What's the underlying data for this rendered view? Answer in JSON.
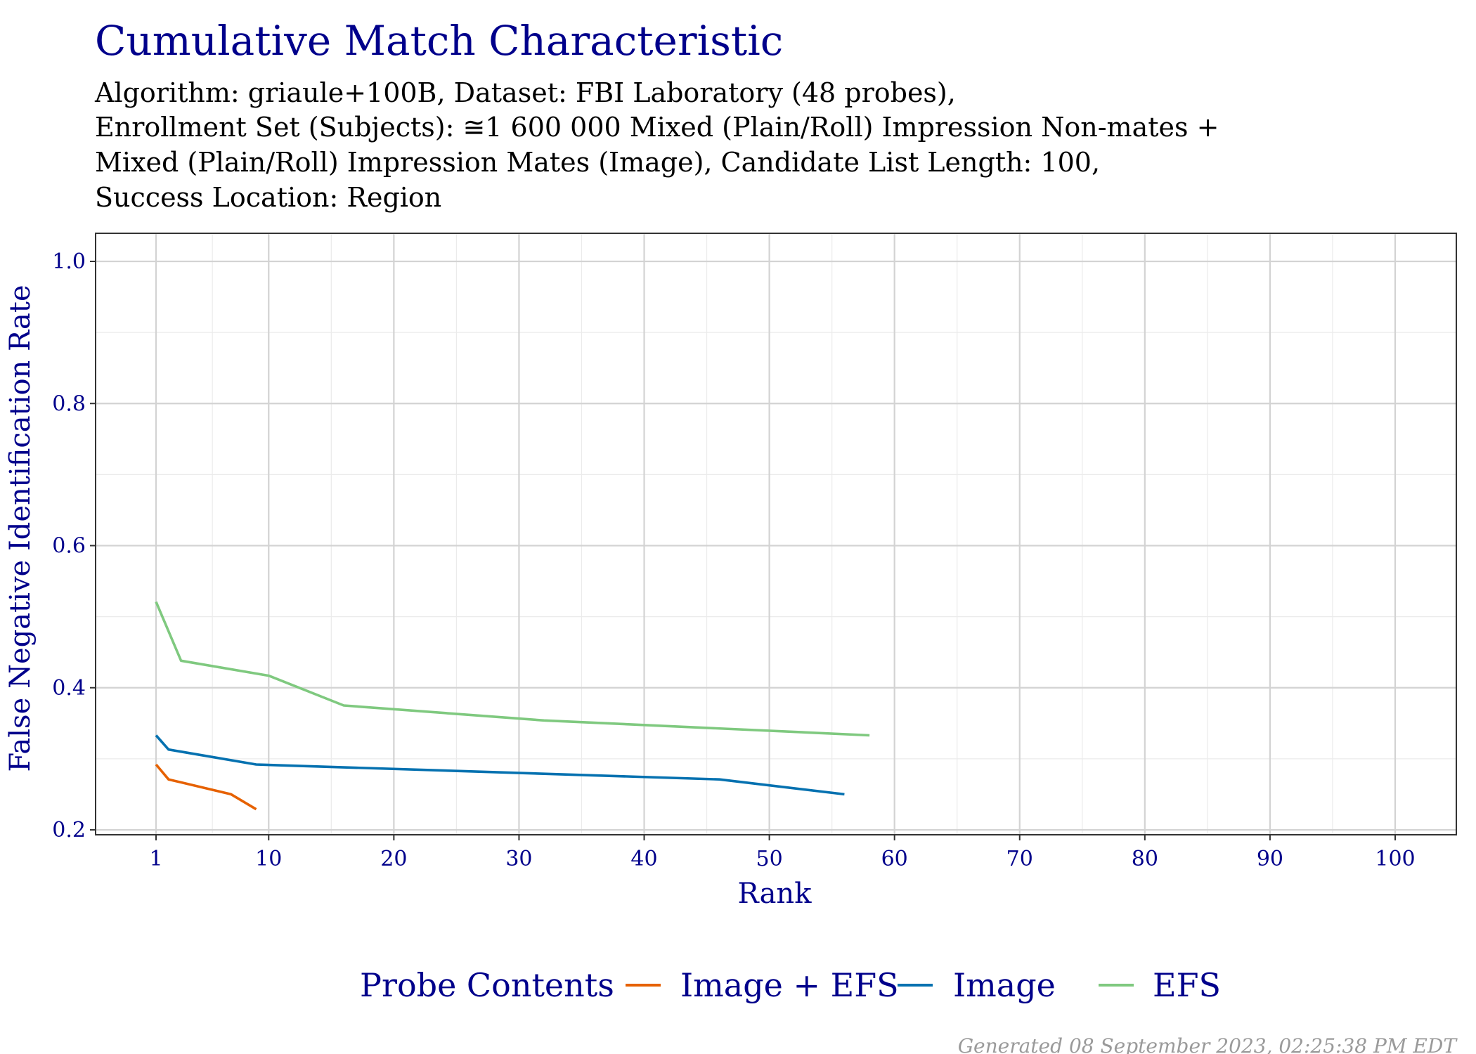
{
  "chart_data": {
    "type": "line",
    "title": "Cumulative Match Characteristic",
    "subtitle_lines": [
      "Algorithm: griaule+100B, Dataset: FBI Laboratory (48 probes),",
      "Enrollment Set (Subjects): ≅1 600 000 Mixed (Plain/Roll) Impression Non-mates +",
      "Mixed (Plain/Roll) Impression Mates (Image), Candidate List Length: 100,",
      "Success Location: Region"
    ],
    "xlabel": "Rank",
    "ylabel": "False Negative Identification Rate",
    "xlim": [
      1,
      100
    ],
    "ylim": [
      0.2,
      1.0
    ],
    "x_ticks": [
      1,
      10,
      20,
      30,
      40,
      50,
      60,
      70,
      80,
      90,
      100
    ],
    "y_ticks": [
      0.2,
      0.4,
      0.6,
      0.8,
      1.0
    ],
    "y_tick_labels": [
      "0.2",
      "0.4",
      "0.6",
      "0.8",
      "1.0"
    ],
    "grid": true,
    "legend_title": "Probe Contents",
    "legend_position": "bottom",
    "series": [
      {
        "name": "Image + EFS",
        "color": "#E66101",
        "points": [
          [
            1,
            0.292
          ],
          [
            2,
            0.271
          ],
          [
            7,
            0.25
          ],
          [
            9,
            0.229
          ]
        ]
      },
      {
        "name": "Image",
        "color": "#0571B0",
        "points": [
          [
            1,
            0.333
          ],
          [
            2,
            0.313
          ],
          [
            9,
            0.292
          ],
          [
            46,
            0.271
          ],
          [
            56,
            0.25
          ]
        ]
      },
      {
        "name": "EFS",
        "color": "#7FC97F",
        "points": [
          [
            1,
            0.521
          ],
          [
            3,
            0.438
          ],
          [
            10,
            0.417
          ],
          [
            16,
            0.375
          ],
          [
            32,
            0.354
          ],
          [
            58,
            0.333
          ]
        ]
      }
    ]
  },
  "footer": "Generated 08 September 2023, 02:25:38 PM EDT"
}
